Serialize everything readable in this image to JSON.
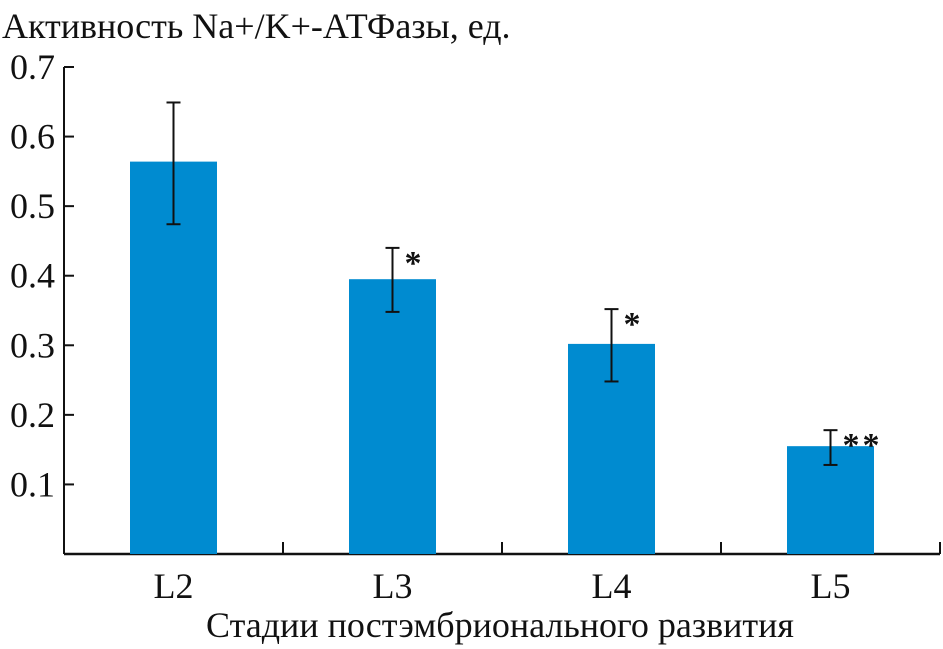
{
  "chart_data": {
    "type": "bar",
    "title": "Активность Na+/K+-АТФазы, ед.",
    "xlabel": "Стадии постэмбрионального развития",
    "ylabel": "Активность Na+/K+-АТФазы, ед.",
    "categories": [
      "L2",
      "L3",
      "L4",
      "L5"
    ],
    "values": [
      0.564,
      0.395,
      0.302,
      0.155
    ],
    "error_upper": [
      0.649,
      0.44,
      0.352,
      0.178
    ],
    "error_lower": [
      0.474,
      0.348,
      0.248,
      0.128
    ],
    "annotations": [
      "",
      "*",
      "*",
      "**"
    ],
    "ylim": [
      0,
      0.7
    ],
    "yticks": [
      "0.1",
      "0.2",
      "0.3",
      "0.4",
      "0.5",
      "0.6",
      "0.7"
    ],
    "ytick_values": [
      0.1,
      0.2,
      0.3,
      0.4,
      0.5,
      0.6,
      0.7
    ],
    "grid": false,
    "bar_color": "#008bd0"
  }
}
